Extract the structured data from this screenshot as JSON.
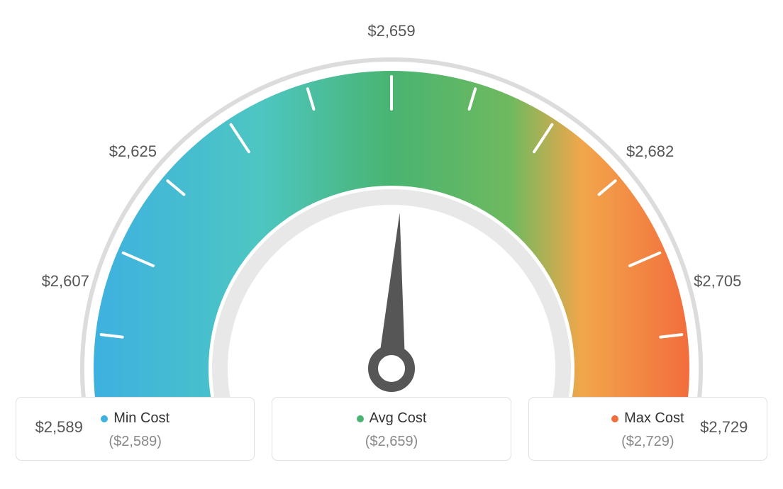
{
  "gauge": {
    "type": "gauge",
    "tick_labels": [
      "$2,589",
      "$2,607",
      "$2,625",
      "",
      "$2,659",
      "",
      "$2,682",
      "$2,705",
      "$2,729"
    ],
    "label_fontsize": 22,
    "label_color": "#555555",
    "needle_angle_deg": 87,
    "colors": {
      "blue": "#3eb1e0",
      "cyan": "#4dc6c2",
      "green": "#49b471",
      "orange": "#f26d3d",
      "tick_stroke": "#ffffff",
      "outer_ring": "#dcdcdc",
      "inner_ring": "#e8e8e8",
      "needle": "#565656",
      "background": "#ffffff"
    },
    "geometry": {
      "outer_radius": 420,
      "inner_radius": 230,
      "ring_gap": 6,
      "outer_ring_width": 6,
      "inner_ring_width": 22,
      "tick_count": 13,
      "tick_width": 4,
      "tick_len_long": 46,
      "tick_len_short": 30
    }
  },
  "cards": {
    "min": {
      "title": "Min Cost",
      "value": "($2,589)",
      "dot_color": "#3eb1e0"
    },
    "avg": {
      "title": "Avg Cost",
      "value": "($2,659)",
      "dot_color": "#49b471"
    },
    "max": {
      "title": "Max Cost",
      "value": "($2,729)",
      "dot_color": "#f26d3d"
    }
  }
}
